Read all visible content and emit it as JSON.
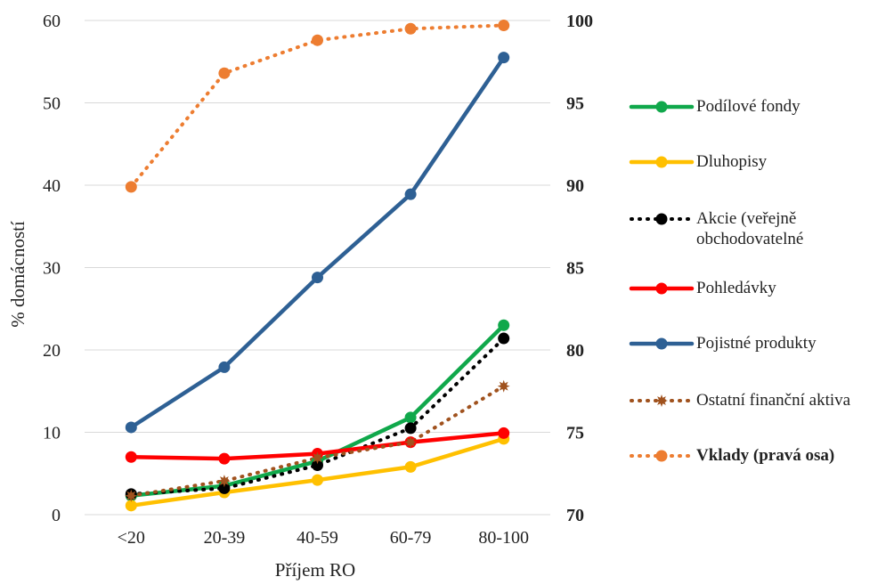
{
  "chart_data": {
    "type": "line",
    "xlabel": "Příjem RO",
    "ylabel": "% domácností",
    "categories": [
      "<20",
      "20-39",
      "40-59",
      "60-79",
      "80-100"
    ],
    "ylim": [
      0,
      60
    ],
    "yticks": [
      0,
      10,
      20,
      30,
      40,
      50,
      60
    ],
    "y2lim": [
      70,
      100
    ],
    "y2ticks": [
      70,
      75,
      80,
      85,
      90,
      95,
      100
    ],
    "grid": true,
    "legend_position": "right",
    "series": [
      {
        "name": "Podílové fondy",
        "values": [
          2.3,
          3.5,
          6.5,
          11.8,
          23.0
        ],
        "color": "#10A84B",
        "style": "solid",
        "marker": "circle",
        "axis": "left"
      },
      {
        "name": "Dluhopisy",
        "values": [
          1.1,
          2.7,
          4.2,
          5.8,
          9.2
        ],
        "color": "#FFC000",
        "style": "solid",
        "marker": "circle",
        "axis": "left"
      },
      {
        "name": "Akcie (veřejně obchodovatelné",
        "values": [
          2.5,
          3.2,
          6.0,
          10.5,
          21.4
        ],
        "color": "#000000",
        "style": "dotted",
        "marker": "circle",
        "axis": "left"
      },
      {
        "name": "Pohledávky",
        "values": [
          7.0,
          6.8,
          7.4,
          8.8,
          9.9
        ],
        "color": "#FF0000",
        "style": "solid",
        "marker": "circle",
        "axis": "left"
      },
      {
        "name": "Pojistné produkty",
        "values": [
          10.6,
          17.9,
          28.8,
          38.9,
          55.5
        ],
        "color": "#2E6094",
        "style": "solid",
        "marker": "circle",
        "axis": "left"
      },
      {
        "name": "Ostatní finanční aktiva",
        "values": [
          2.3,
          4.1,
          6.9,
          8.8,
          15.6
        ],
        "color": "#A0521E",
        "style": "dotted",
        "marker": "star",
        "axis": "left"
      },
      {
        "name": "Vklady (pravá osa)",
        "values": [
          89.9,
          96.8,
          98.8,
          99.5,
          99.7
        ],
        "color": "#ED7D31",
        "style": "dotted",
        "marker": "circle",
        "axis": "right",
        "bold_label": true
      }
    ]
  }
}
